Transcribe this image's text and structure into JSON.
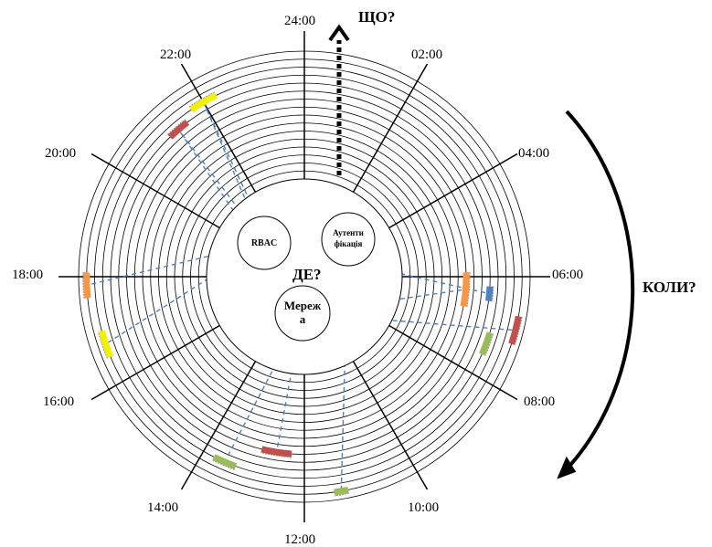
{
  "hour_labels": {
    "h24": "24:00",
    "h02": "02:00",
    "h04": "04:00",
    "h06": "06:00",
    "h08": "08:00",
    "h10": "10:00",
    "h12": "12:00",
    "h14": "14:00",
    "h16": "16:00",
    "h18": "18:00",
    "h20": "20:00",
    "h22": "22:00"
  },
  "questions": {
    "what": "ЩО?",
    "when": "КОЛИ?",
    "where": "ДЕ?"
  },
  "nodes": {
    "rbac": "RBAC",
    "auth_line1": "Аутенти",
    "auth_line2": "фікація",
    "net_line1": "Мереж",
    "net_line2": "а"
  },
  "colors": {
    "yellow": "#f2f200",
    "red": "#c0504d",
    "orange": "#f79646",
    "blue": "#4f81bd",
    "green": "#9bbb59",
    "dash": "#4f81bd"
  },
  "events": [
    {
      "hour": 22.0,
      "ring": 13,
      "span": 0.55,
      "color": "yellow"
    },
    {
      "hour": 21.3,
      "ring": 12,
      "span": 0.45,
      "color": "red"
    },
    {
      "hour": 17.85,
      "ring": 15,
      "span": 0.45,
      "color": "orange"
    },
    {
      "hour": 16.75,
      "ring": 14,
      "span": 0.5,
      "color": "yellow"
    },
    {
      "hour": 6.3,
      "ring": 8,
      "span": 0.8,
      "color": "orange"
    },
    {
      "hour": 6.35,
      "ring": 11,
      "span": 0.3,
      "color": "blue"
    },
    {
      "hour": 6.95,
      "ring": 15,
      "span": 0.5,
      "color": "red"
    },
    {
      "hour": 7.35,
      "ring": 12,
      "span": 0.45,
      "color": "green"
    },
    {
      "hour": 13.55,
      "ring": 13,
      "span": 0.45,
      "color": "green"
    },
    {
      "hour": 12.6,
      "ring": 10,
      "span": 0.65,
      "color": "red"
    },
    {
      "hour": 11.35,
      "ring": 15,
      "span": 0.25,
      "color": "green"
    }
  ]
}
